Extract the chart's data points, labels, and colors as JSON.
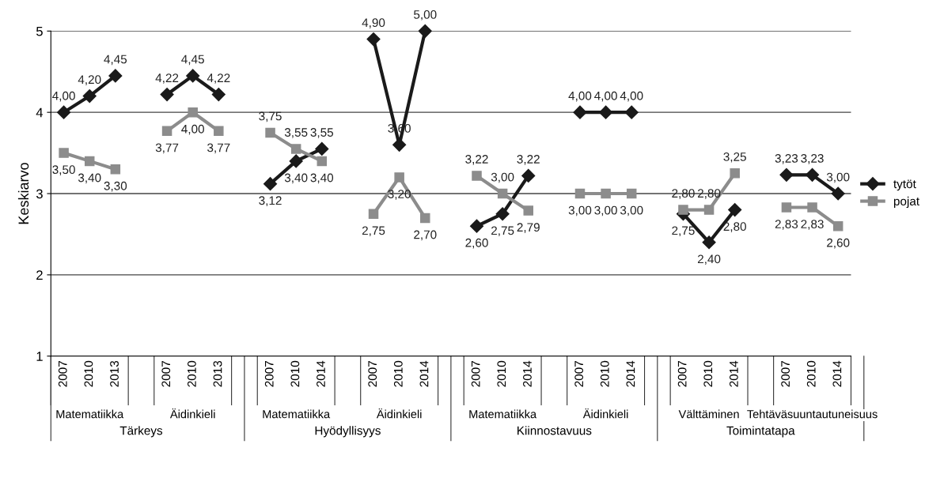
{
  "chart_data": {
    "type": "line",
    "ylabel": "Keskiarvo",
    "categories": [
      "2007",
      "2010",
      "2013",
      null,
      "2007",
      "2010",
      "2013",
      null,
      "2007",
      "2010",
      "2014",
      null,
      "2007",
      "2010",
      "2014",
      null,
      "2007",
      "2010",
      "2014",
      null,
      "2007",
      "2010",
      "2014",
      null,
      "2007",
      "2010",
      "2014",
      null,
      "2007",
      "2010",
      "2014"
    ],
    "series": [
      {
        "name": "tytöt",
        "color": "#1a1a1a",
        "marker": "diamond",
        "values": [
          4.0,
          4.2,
          4.45,
          null,
          4.22,
          4.45,
          4.22,
          null,
          3.12,
          3.4,
          3.55,
          null,
          4.9,
          3.6,
          5.0,
          null,
          2.6,
          2.75,
          3.22,
          null,
          4.0,
          4.0,
          4.0,
          null,
          2.75,
          2.4,
          2.8,
          null,
          3.23,
          3.23,
          3.0
        ],
        "value_labels": [
          "4,00",
          "4,20",
          "4,45",
          null,
          "4,22",
          "4,45",
          "4,22",
          null,
          "3,12",
          "3,40",
          "3,55",
          null,
          "4,90",
          "3,60",
          "5,00",
          null,
          "2,60",
          "2,75",
          "3,22",
          null,
          "4,00",
          "4,00",
          "4,00",
          null,
          "2,75",
          "2,40",
          "2,80",
          null,
          "3,23",
          "3,23",
          "3,00"
        ]
      },
      {
        "name": "pojat",
        "color": "#8c8c8c",
        "marker": "square",
        "values": [
          3.5,
          3.4,
          3.3,
          null,
          3.77,
          4.0,
          3.77,
          null,
          3.75,
          3.55,
          3.4,
          null,
          2.75,
          3.2,
          2.7,
          null,
          3.22,
          3.0,
          2.79,
          null,
          3.0,
          3.0,
          3.0,
          null,
          2.8,
          2.8,
          3.25,
          null,
          2.83,
          2.83,
          2.6
        ],
        "value_labels": [
          "3,50",
          "3,40",
          "3,30",
          null,
          "3,77",
          "4,00",
          "3,77",
          null,
          "3,75",
          "3,55",
          "3,40",
          null,
          "2,75",
          "3,20",
          "2,70",
          null,
          "3,22",
          "3,00",
          "2,79",
          null,
          "3,00",
          "3,00",
          "3,00",
          null,
          "2,80",
          "2,80",
          "3,25",
          null,
          "2,83",
          "2,83",
          "2,60"
        ]
      }
    ],
    "ylim": [
      1,
      5
    ],
    "yticks": [
      1,
      2,
      3,
      4,
      5
    ],
    "grid": "y",
    "legend": "right",
    "annotations": [
      "Matematiikka",
      "Äidinkieli",
      "Matematiikka",
      "Äidinkieli",
      "Matematiikka",
      "Äidinkieli",
      "Välttäminen",
      "Tehtäväsuuntautuneisuus",
      "Tärkeys",
      "Hyödyllisyys",
      "Kiinnostavuus",
      "Toimintatapa"
    ]
  }
}
